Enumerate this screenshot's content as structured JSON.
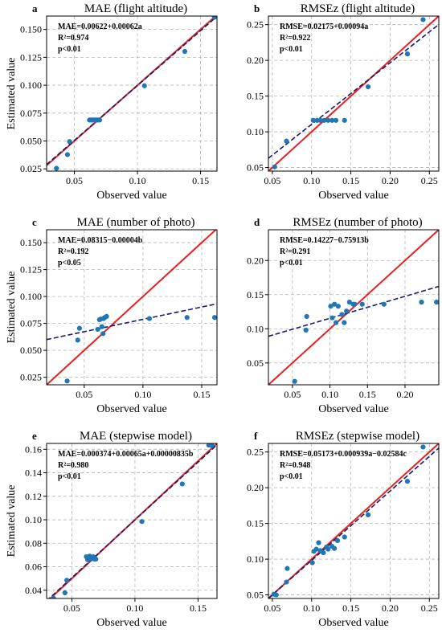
{
  "figure": {
    "xlabel": "Observed value",
    "ylabel": "Estimated value"
  },
  "chart_data": [
    {
      "type": "scatter",
      "letter": "a",
      "title": "MAE (flight altitude)",
      "xlabel": "Observed value",
      "ylabel": "Estimated value",
      "xlim": [
        0.028,
        0.163
      ],
      "ylim": [
        0.023,
        0.162
      ],
      "xticks": [
        0.05,
        0.1,
        0.15
      ],
      "xtick_labels": [
        "0.05",
        "0.10",
        "0.15"
      ],
      "yticks": [
        0.025,
        0.05,
        0.075,
        0.1,
        0.125,
        0.15
      ],
      "ytick_labels": [
        "0.025",
        "0.050",
        "0.075",
        "0.100",
        "0.125",
        "0.150"
      ],
      "grid": true,
      "annotation": [
        "MAE=0.00622+0.00062a",
        "R²=0.974",
        "p<0.01"
      ],
      "points": [
        [
          0.0358,
          0.0255
        ],
        [
          0.0445,
          0.0378
        ],
        [
          0.0462,
          0.0495
        ],
        [
          0.062,
          0.0688
        ],
        [
          0.063,
          0.0688
        ],
        [
          0.064,
          0.0688
        ],
        [
          0.065,
          0.0688
        ],
        [
          0.066,
          0.0688
        ],
        [
          0.067,
          0.0688
        ],
        [
          0.068,
          0.0688
        ],
        [
          0.069,
          0.0688
        ],
        [
          0.07,
          0.0688
        ],
        [
          0.1055,
          0.0995
        ],
        [
          0.1375,
          0.1303
        ],
        [
          0.161,
          0.161
        ]
      ],
      "fit_line": [
        [
          0.028,
          0.0289
        ],
        [
          0.163,
          0.1617
        ]
      ],
      "identity_line": [
        [
          0.028,
          0.028
        ],
        [
          0.163,
          0.163
        ]
      ],
      "colors": {
        "points": "#1f77b4",
        "identity": "#e8201e",
        "fit": "#1a1a6e"
      }
    },
    {
      "type": "scatter",
      "letter": "b",
      "title": "RMSEz (flight altitude)",
      "xlabel": "Observed value",
      "ylabel": "",
      "xlim": [
        0.045,
        0.262
      ],
      "ylim": [
        0.045,
        0.262
      ],
      "xticks": [
        0.05,
        0.1,
        0.15,
        0.2,
        0.25
      ],
      "xtick_labels": [
        "0.05",
        "0.10",
        "0.15",
        "0.20",
        "0.25"
      ],
      "yticks": [
        0.05,
        0.1,
        0.15,
        0.2,
        0.25
      ],
      "ytick_labels": [
        "0.05",
        "0.10",
        "0.15",
        "0.20",
        "0.25"
      ],
      "grid": true,
      "annotation": [
        "RMSE=0.02175+0.00094a",
        "R²=0.922",
        "p<0.01"
      ],
      "points": [
        [
          0.053,
          0.051
        ],
        [
          0.068,
          0.087
        ],
        [
          0.102,
          0.116
        ],
        [
          0.107,
          0.116
        ],
        [
          0.111,
          0.116
        ],
        [
          0.116,
          0.116
        ],
        [
          0.121,
          0.116
        ],
        [
          0.126,
          0.116
        ],
        [
          0.131,
          0.116
        ],
        [
          0.142,
          0.116
        ],
        [
          0.172,
          0.163
        ],
        [
          0.222,
          0.209
        ],
        [
          0.242,
          0.257
        ]
      ],
      "fit_line": [
        [
          0.045,
          0.063
        ],
        [
          0.262,
          0.2502
        ]
      ],
      "identity_line": [
        [
          0.045,
          0.045
        ],
        [
          0.262,
          0.262
        ]
      ],
      "colors": {
        "points": "#1f77b4",
        "identity": "#e8201e",
        "fit": "#1a1a6e"
      }
    },
    {
      "type": "scatter",
      "letter": "c",
      "title": "MAE (number of photo)",
      "xlabel": "Observed value",
      "ylabel": "Estimated value",
      "xlim": [
        0.018,
        0.163
      ],
      "ylim": [
        0.018,
        0.162
      ],
      "xticks": [
        0.05,
        0.1,
        0.15
      ],
      "xtick_labels": [
        "0.05",
        "0.10",
        "0.15"
      ],
      "yticks": [
        0.025,
        0.05,
        0.075,
        0.1,
        0.125,
        0.15
      ],
      "ytick_labels": [
        "0.025",
        "0.050",
        "0.075",
        "0.100",
        "0.125",
        "0.150"
      ],
      "grid": true,
      "annotation": [
        "MAE=0.08315−0.00004b",
        "R²=0.192",
        "p<0.05"
      ],
      "points": [
        [
          0.0355,
          0.0215
        ],
        [
          0.0445,
          0.0595
        ],
        [
          0.046,
          0.0705
        ],
        [
          0.0615,
          0.0695
        ],
        [
          0.063,
          0.0785
        ],
        [
          0.064,
          0.079
        ],
        [
          0.065,
          0.072
        ],
        [
          0.066,
          0.0655
        ],
        [
          0.0665,
          0.0795
        ],
        [
          0.0675,
          0.0805
        ],
        [
          0.069,
          0.0815
        ],
        [
          0.1055,
          0.0795
        ],
        [
          0.1375,
          0.0805
        ],
        [
          0.161,
          0.0805
        ]
      ],
      "fit_line": [
        [
          0.018,
          0.06
        ],
        [
          0.163,
          0.0932
        ]
      ],
      "identity_line": [
        [
          0.018,
          0.018
        ],
        [
          0.163,
          0.163
        ]
      ],
      "colors": {
        "points": "#1f77b4",
        "identity": "#e8201e",
        "fit": "#1a1a6e"
      }
    },
    {
      "type": "scatter",
      "letter": "d",
      "title": "RMSEz (number of photo)",
      "xlabel": "Observed value",
      "ylabel": "",
      "xlim": [
        0.018,
        0.245
      ],
      "ylim": [
        0.018,
        0.245
      ],
      "xticks": [
        0.05,
        0.1,
        0.15,
        0.2
      ],
      "xtick_labels": [
        "0.05",
        "0.10",
        "0.15",
        "0.20"
      ],
      "yticks": [
        0.05,
        0.1,
        0.15,
        0.2
      ],
      "ytick_labels": [
        "0.05",
        "0.10",
        "0.15",
        "0.20"
      ],
      "grid": true,
      "annotation": [
        "RMSE=0.14227−0.75913b",
        "R²=0.291",
        "p<0.01"
      ],
      "points": [
        [
          0.053,
          0.023
        ],
        [
          0.068,
          0.098
        ],
        [
          0.069,
          0.118
        ],
        [
          0.101,
          0.133
        ],
        [
          0.103,
          0.116
        ],
        [
          0.106,
          0.136
        ],
        [
          0.108,
          0.109
        ],
        [
          0.111,
          0.133
        ],
        [
          0.116,
          0.121
        ],
        [
          0.119,
          0.109
        ],
        [
          0.122,
          0.126
        ],
        [
          0.126,
          0.139
        ],
        [
          0.131,
          0.136
        ],
        [
          0.133,
          0.136
        ],
        [
          0.143,
          0.136
        ],
        [
          0.172,
          0.136
        ],
        [
          0.222,
          0.139
        ],
        [
          0.242,
          0.139
        ]
      ],
      "fit_line": [
        [
          0.018,
          0.089
        ],
        [
          0.245,
          0.162
        ]
      ],
      "identity_line": [
        [
          0.018,
          0.018
        ],
        [
          0.245,
          0.245
        ]
      ],
      "colors": {
        "points": "#1f77b4",
        "identity": "#e8201e",
        "fit": "#1a1a6e"
      }
    },
    {
      "type": "scatter",
      "letter": "e",
      "title": "MAE (stepwise model)",
      "xlabel": "Observed value",
      "ylabel": "Estimated value",
      "xlim": [
        0.03,
        0.165
      ],
      "ylim": [
        0.033,
        0.165
      ],
      "xticks": [
        0.05,
        0.1,
        0.15
      ],
      "xtick_labels": [
        "0.05",
        "0.10",
        "0.15"
      ],
      "yticks": [
        0.04,
        0.06,
        0.08,
        0.1,
        0.12,
        0.14,
        0.16
      ],
      "ytick_labels": [
        "0.04",
        "0.06",
        "0.08",
        "0.10",
        "0.12",
        "0.14",
        "0.16"
      ],
      "grid": true,
      "annotation": [
        "MAE=0.000374+0.00065a+0.00000835b",
        "R²=0.980",
        "p<0.01"
      ],
      "points": [
        [
          0.0355,
          0.0332
        ],
        [
          0.0445,
          0.0378
        ],
        [
          0.046,
          0.0485
        ],
        [
          0.0615,
          0.0685
        ],
        [
          0.0625,
          0.066
        ],
        [
          0.0635,
          0.0675
        ],
        [
          0.064,
          0.069
        ],
        [
          0.0645,
          0.067
        ],
        [
          0.065,
          0.0665
        ],
        [
          0.066,
          0.068
        ],
        [
          0.067,
          0.0685
        ],
        [
          0.068,
          0.0665
        ],
        [
          0.069,
          0.0665
        ],
        [
          0.1055,
          0.0985
        ],
        [
          0.1375,
          0.1305
        ],
        [
          0.1585,
          0.1635
        ],
        [
          0.161,
          0.1632
        ]
      ],
      "fit_line": [
        [
          0.03,
          0.031
        ],
        [
          0.165,
          0.1638
        ]
      ],
      "identity_line": [
        [
          0.03,
          0.03
        ],
        [
          0.165,
          0.165
        ]
      ],
      "colors": {
        "points": "#1f77b4",
        "identity": "#e8201e",
        "fit": "#1a1a6e"
      }
    },
    {
      "type": "scatter",
      "letter": "f",
      "title": "RMSEz (stepwise model)",
      "xlabel": "Observed value",
      "ylabel": "",
      "xlim": [
        0.045,
        0.262
      ],
      "ylim": [
        0.045,
        0.262
      ],
      "xticks": [
        0.05,
        0.1,
        0.15,
        0.2,
        0.25
      ],
      "xtick_labels": [
        "0.05",
        "0.10",
        "0.15",
        "0.20",
        "0.25"
      ],
      "yticks": [
        0.05,
        0.1,
        0.15,
        0.2,
        0.25
      ],
      "ytick_labels": [
        "0.05",
        "0.10",
        "0.15",
        "0.20",
        "0.25"
      ],
      "grid": true,
      "annotation": [
        "RMSE=0.05173+0.000939a−0.02584c",
        "R²=0.948",
        "p<0.01"
      ],
      "points": [
        [
          0.052,
          0.051
        ],
        [
          0.055,
          0.05
        ],
        [
          0.068,
          0.068
        ],
        [
          0.069,
          0.087
        ],
        [
          0.101,
          0.095
        ],
        [
          0.103,
          0.111
        ],
        [
          0.106,
          0.114
        ],
        [
          0.109,
          0.123
        ],
        [
          0.111,
          0.112
        ],
        [
          0.115,
          0.109
        ],
        [
          0.119,
          0.117
        ],
        [
          0.121,
          0.114
        ],
        [
          0.126,
          0.118
        ],
        [
          0.129,
          0.115
        ],
        [
          0.133,
          0.126
        ],
        [
          0.142,
          0.131
        ],
        [
          0.172,
          0.162
        ],
        [
          0.222,
          0.209
        ],
        [
          0.242,
          0.257
        ]
      ],
      "fit_line": [
        [
          0.045,
          0.045
        ],
        [
          0.262,
          0.2555
        ]
      ],
      "identity_line": [
        [
          0.045,
          0.045
        ],
        [
          0.262,
          0.262
        ]
      ],
      "colors": {
        "points": "#1f77b4",
        "identity": "#e8201e",
        "fit": "#1a1a6e"
      }
    }
  ]
}
